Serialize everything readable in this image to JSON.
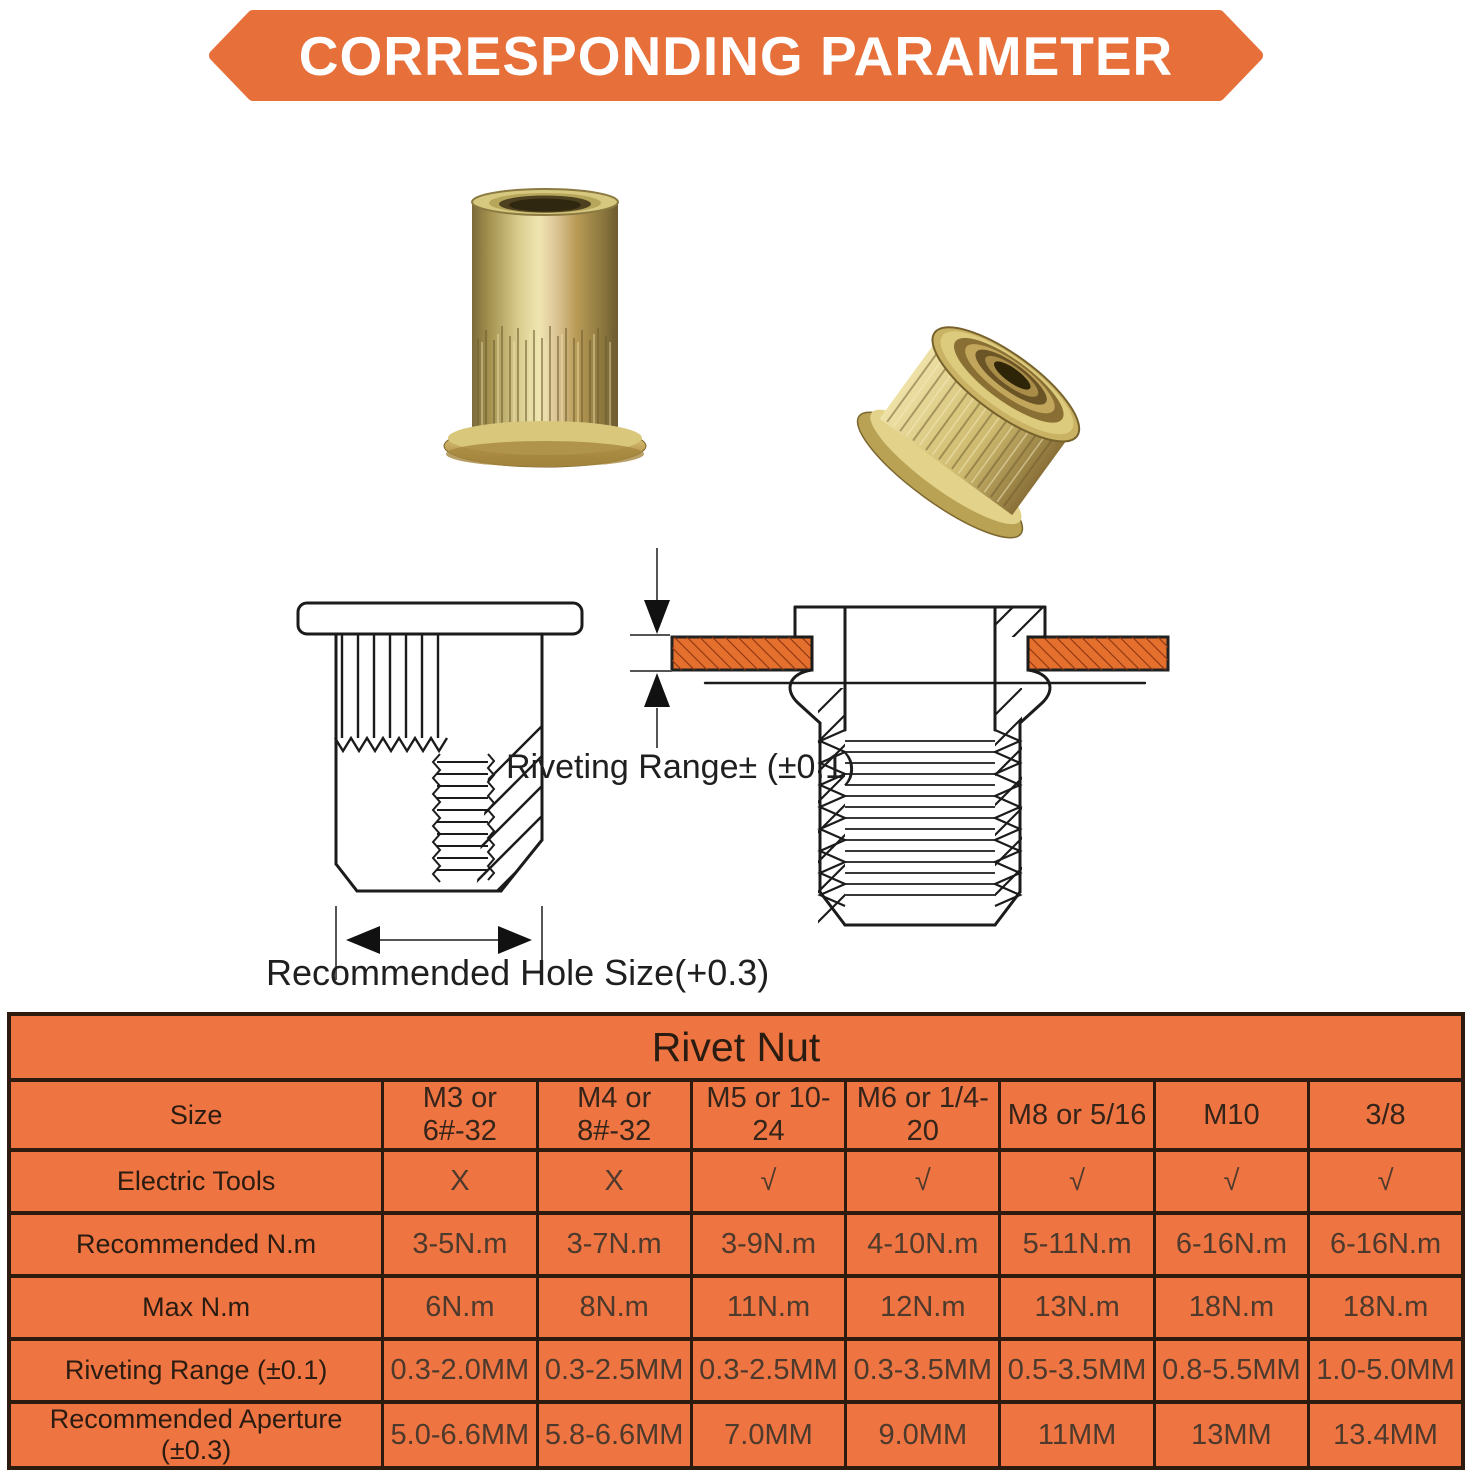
{
  "banner": {
    "title": "CORRESPONDING PARAMETER"
  },
  "colors": {
    "banner_bg": "#e7703a",
    "banner_text": "#ffffff",
    "table_bg": "#ee7442",
    "table_border": "#2e1b10",
    "table_label_text": "#2b1c12",
    "table_value_text": "#4d3a2c",
    "diagram_line": "#1b1b1b",
    "plate_fill": "#e5702e",
    "plate_hatch": "#8a3512"
  },
  "diagram": {
    "riveting_range_label": "Riveting Range±  (±0.1)",
    "hole_size_label": "Recommended Hole Size(+0.3)"
  },
  "photos": {
    "left_alt": "yellow zinc flat-head knurled rivet nut standing upright",
    "right_alt": "yellow zinc rivet nut tilted showing internal threaded bore"
  },
  "table": {
    "title": "Rivet Nut",
    "rows": [
      {
        "label": "Size",
        "values": [
          "M3 or 6#-32",
          "M4 or 8#-32",
          "M5 or 10-24",
          "M6 or 1/4-20",
          "M8 or 5/16",
          "M10",
          "3/8"
        ]
      },
      {
        "label": "Electric Tools",
        "values": [
          "X",
          "X",
          "√",
          "√",
          "√",
          "√",
          "√"
        ]
      },
      {
        "label": "Recommended N.m",
        "values": [
          "3-5N.m",
          "3-7N.m",
          "3-9N.m",
          "4-10N.m",
          "5-11N.m",
          "6-16N.m",
          "6-16N.m"
        ]
      },
      {
        "label": "Max N.m",
        "values": [
          "6N.m",
          "8N.m",
          "11N.m",
          "12N.m",
          "13N.m",
          "18N.m",
          "18N.m"
        ]
      },
      {
        "label": "Riveting Range (±0.1)",
        "values": [
          "0.3-2.0MM",
          "0.3-2.5MM",
          "0.3-2.5MM",
          "0.3-3.5MM",
          "0.5-3.5MM",
          "0.8-5.5MM",
          "1.0-5.0MM"
        ]
      },
      {
        "label": "Recommended Aperture (±0.3)",
        "values": [
          "5.0-6.6MM",
          "5.8-6.6MM",
          "7.0MM",
          "9.0MM",
          "11MM",
          "13MM",
          "13.4MM"
        ]
      }
    ]
  }
}
